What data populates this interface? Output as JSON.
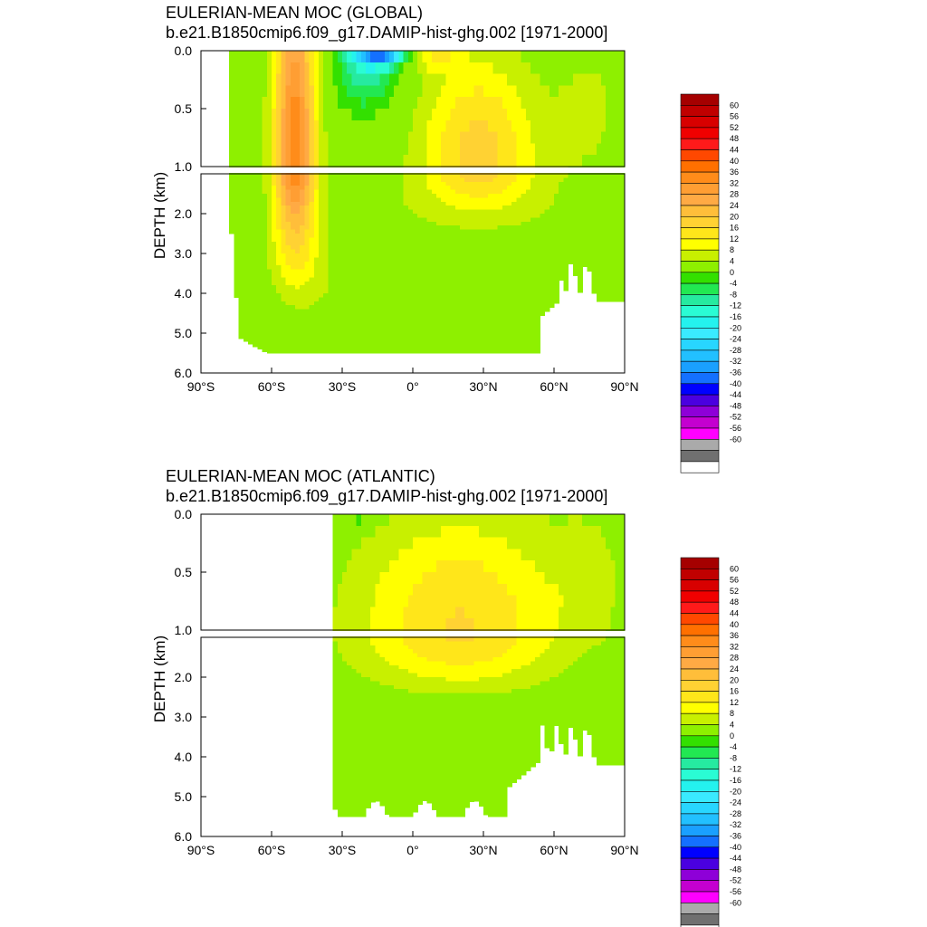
{
  "chart_data": [
    {
      "type": "heatmap",
      "title": "EULERIAN-MEAN MOC (GLOBAL)",
      "subtitle": "b.e21.B1850cmip6.f09_g17.DAMIP-hist-ghg.002 [1971-2000]",
      "xlabel": "",
      "ylabel": "DEPTH (km)",
      "xlim": [
        -90,
        90
      ],
      "ylim": [
        6.0,
        0.0
      ],
      "y_scale": "piecewise: 0-1 km expanded, 1-6 km compressed",
      "x_ticks": [
        -90,
        -60,
        -30,
        0,
        30,
        60,
        90
      ],
      "x_tick_labels": [
        "90°S",
        "60°S",
        "30°S",
        "0°",
        "30°N",
        "60°N",
        "90°N"
      ],
      "y_ticks_upper": [
        0.0,
        0.5,
        1.0
      ],
      "y_ticks_upper_labels": [
        "0.0",
        "0.5",
        "1.0"
      ],
      "y_ticks_lower": [
        2.0,
        3.0,
        4.0,
        5.0,
        6.0
      ],
      "y_ticks_lower_labels": [
        "2.0",
        "3.0",
        "4.0",
        "5.0",
        "6.0"
      ],
      "contour_interval": 4,
      "contour_levels_label": [
        "60",
        "56",
        "52",
        "48",
        "44",
        "40",
        "36",
        "32",
        "28",
        "24",
        "20",
        "16",
        "12",
        "8",
        "4",
        "0",
        "-4",
        "-8",
        "-12",
        "-16",
        "-20",
        "-24",
        "-28",
        "-32",
        "-36",
        "-40",
        "-44",
        "-48",
        "-52",
        "-56",
        "-60"
      ],
      "colorbar_colors": [
        "#a50000",
        "#c00000",
        "#d80000",
        "#f00000",
        "#ff1a1a",
        "#ff4800",
        "#ff7000",
        "#ff8c1a",
        "#ff9e33",
        "#ffaa44",
        "#ffbe3a",
        "#ffd233",
        "#ffe61a",
        "#ffff00",
        "#c8f000",
        "#8ef000",
        "#33e000",
        "#22e852",
        "#26eaa0",
        "#2afcd4",
        "#24f2ee",
        "#3aeaff",
        "#28d6ff",
        "#22c0ff",
        "#1aa0ff",
        "#1470ff",
        "#0000ff",
        "#4a00e0",
        "#8e00d8",
        "#c400d0",
        "#ff00ff",
        "#aaaaaa",
        "#707070",
        "#ffffff"
      ],
      "features": [
        {
          "name": "southern-ocean-positive-cell",
          "lat_range": [
            -62,
            -40
          ],
          "depth_range": [
            0.0,
            4.2
          ],
          "max_value": 36
        },
        {
          "name": "tropical-negative-cell",
          "lat_range": [
            -30,
            0
          ],
          "depth_range": [
            0.0,
            0.4
          ],
          "min_value": -40
        },
        {
          "name": "northern-positive-cell",
          "lat_range": [
            0,
            60
          ],
          "depth_range": [
            0.0,
            1.5
          ],
          "max_value": 20
        },
        {
          "name": "abyssal-negative-cell",
          "lat_range": [
            0,
            52
          ],
          "depth_range": [
            3.0,
            5.5
          ],
          "min_value": -4
        }
      ]
    },
    {
      "type": "heatmap",
      "title": "EULERIAN-MEAN MOC (ATLANTIC)",
      "subtitle": "b.e21.B1850cmip6.f09_g17.DAMIP-hist-ghg.002 [1971-2000]",
      "xlabel": "",
      "ylabel": "DEPTH (km)",
      "xlim": [
        -90,
        90
      ],
      "ylim": [
        6.0,
        0.0
      ],
      "y_scale": "piecewise: 0-1 km expanded, 1-6 km compressed",
      "x_ticks": [
        -90,
        -60,
        -30,
        0,
        30,
        60,
        90
      ],
      "x_tick_labels": [
        "90°S",
        "60°S",
        "30°S",
        "0°",
        "30°N",
        "60°N",
        "90°N"
      ],
      "y_ticks_upper": [
        0.0,
        0.5,
        1.0
      ],
      "y_ticks_upper_labels": [
        "0.0",
        "0.5",
        "1.0"
      ],
      "y_ticks_lower": [
        2.0,
        3.0,
        4.0,
        5.0,
        6.0
      ],
      "y_ticks_lower_labels": [
        "2.0",
        "3.0",
        "4.0",
        "5.0",
        "6.0"
      ],
      "contour_interval": 4,
      "contour_levels_label": [
        "60",
        "56",
        "52",
        "48",
        "44",
        "40",
        "36",
        "32",
        "28",
        "24",
        "20",
        "16",
        "12",
        "8",
        "4",
        "0",
        "-4",
        "-8",
        "-12",
        "-16",
        "-20",
        "-24",
        "-28",
        "-32",
        "-36",
        "-40",
        "-44",
        "-48",
        "-52",
        "-56",
        "-60"
      ],
      "colorbar_colors": [
        "#a50000",
        "#c00000",
        "#d80000",
        "#f00000",
        "#ff1a1a",
        "#ff4800",
        "#ff7000",
        "#ff8c1a",
        "#ff9e33",
        "#ffaa44",
        "#ffbe3a",
        "#ffd233",
        "#ffe61a",
        "#ffff00",
        "#c8f000",
        "#8ef000",
        "#33e000",
        "#22e852",
        "#26eaa0",
        "#2afcd4",
        "#24f2ee",
        "#3aeaff",
        "#28d6ff",
        "#22c0ff",
        "#1aa0ff",
        "#1470ff",
        "#0000ff",
        "#4a00e0",
        "#8e00d8",
        "#c400d0",
        "#ff00ff",
        "#aaaaaa",
        "#707070",
        "#ffffff"
      ],
      "features": [
        {
          "name": "atlantic-overturning-cell",
          "lat_range": [
            -34,
            60
          ],
          "depth_range": [
            0.0,
            2.5
          ],
          "max_value": 20
        },
        {
          "name": "atlantic-abyssal-negative-cell",
          "lat_range": [
            -34,
            50
          ],
          "depth_range": [
            3.0,
            5.5
          ],
          "min_value": -4
        }
      ]
    }
  ]
}
